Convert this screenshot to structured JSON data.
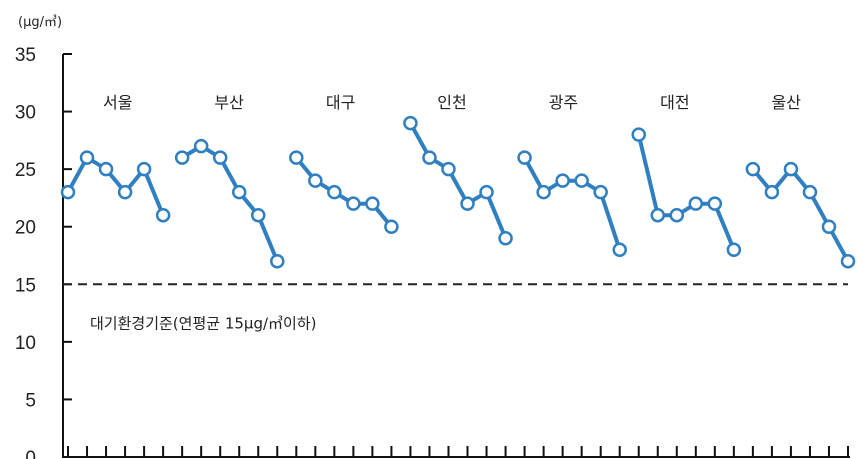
{
  "chart_data": {
    "type": "line",
    "unit_label": "(μg/㎥)",
    "ylim": [
      0,
      35
    ],
    "yticks": [
      0,
      5,
      10,
      15,
      20,
      25,
      30,
      35
    ],
    "series": [
      {
        "name": "서울",
        "values": [
          23,
          26,
          25,
          23,
          25,
          21
        ]
      },
      {
        "name": "부산",
        "values": [
          26,
          27,
          26,
          23,
          21,
          17
        ]
      },
      {
        "name": "대구",
        "values": [
          26,
          24,
          23,
          22,
          22,
          20
        ]
      },
      {
        "name": "인천",
        "values": [
          29,
          26,
          25,
          22,
          23,
          19
        ]
      },
      {
        "name": "광주",
        "values": [
          26,
          23,
          24,
          24,
          23,
          18
        ]
      },
      {
        "name": "대전",
        "values": [
          28,
          21,
          21,
          22,
          22,
          18
        ]
      },
      {
        "name": "울산",
        "values": [
          25,
          23,
          25,
          23,
          20,
          17
        ]
      }
    ],
    "reference_line": {
      "value": 15,
      "label": "대기환경기준(연평균 15μg/㎥이하)"
    },
    "line_color": "#2f7fc1",
    "marker_fill": "#ffffff",
    "grid": false
  }
}
